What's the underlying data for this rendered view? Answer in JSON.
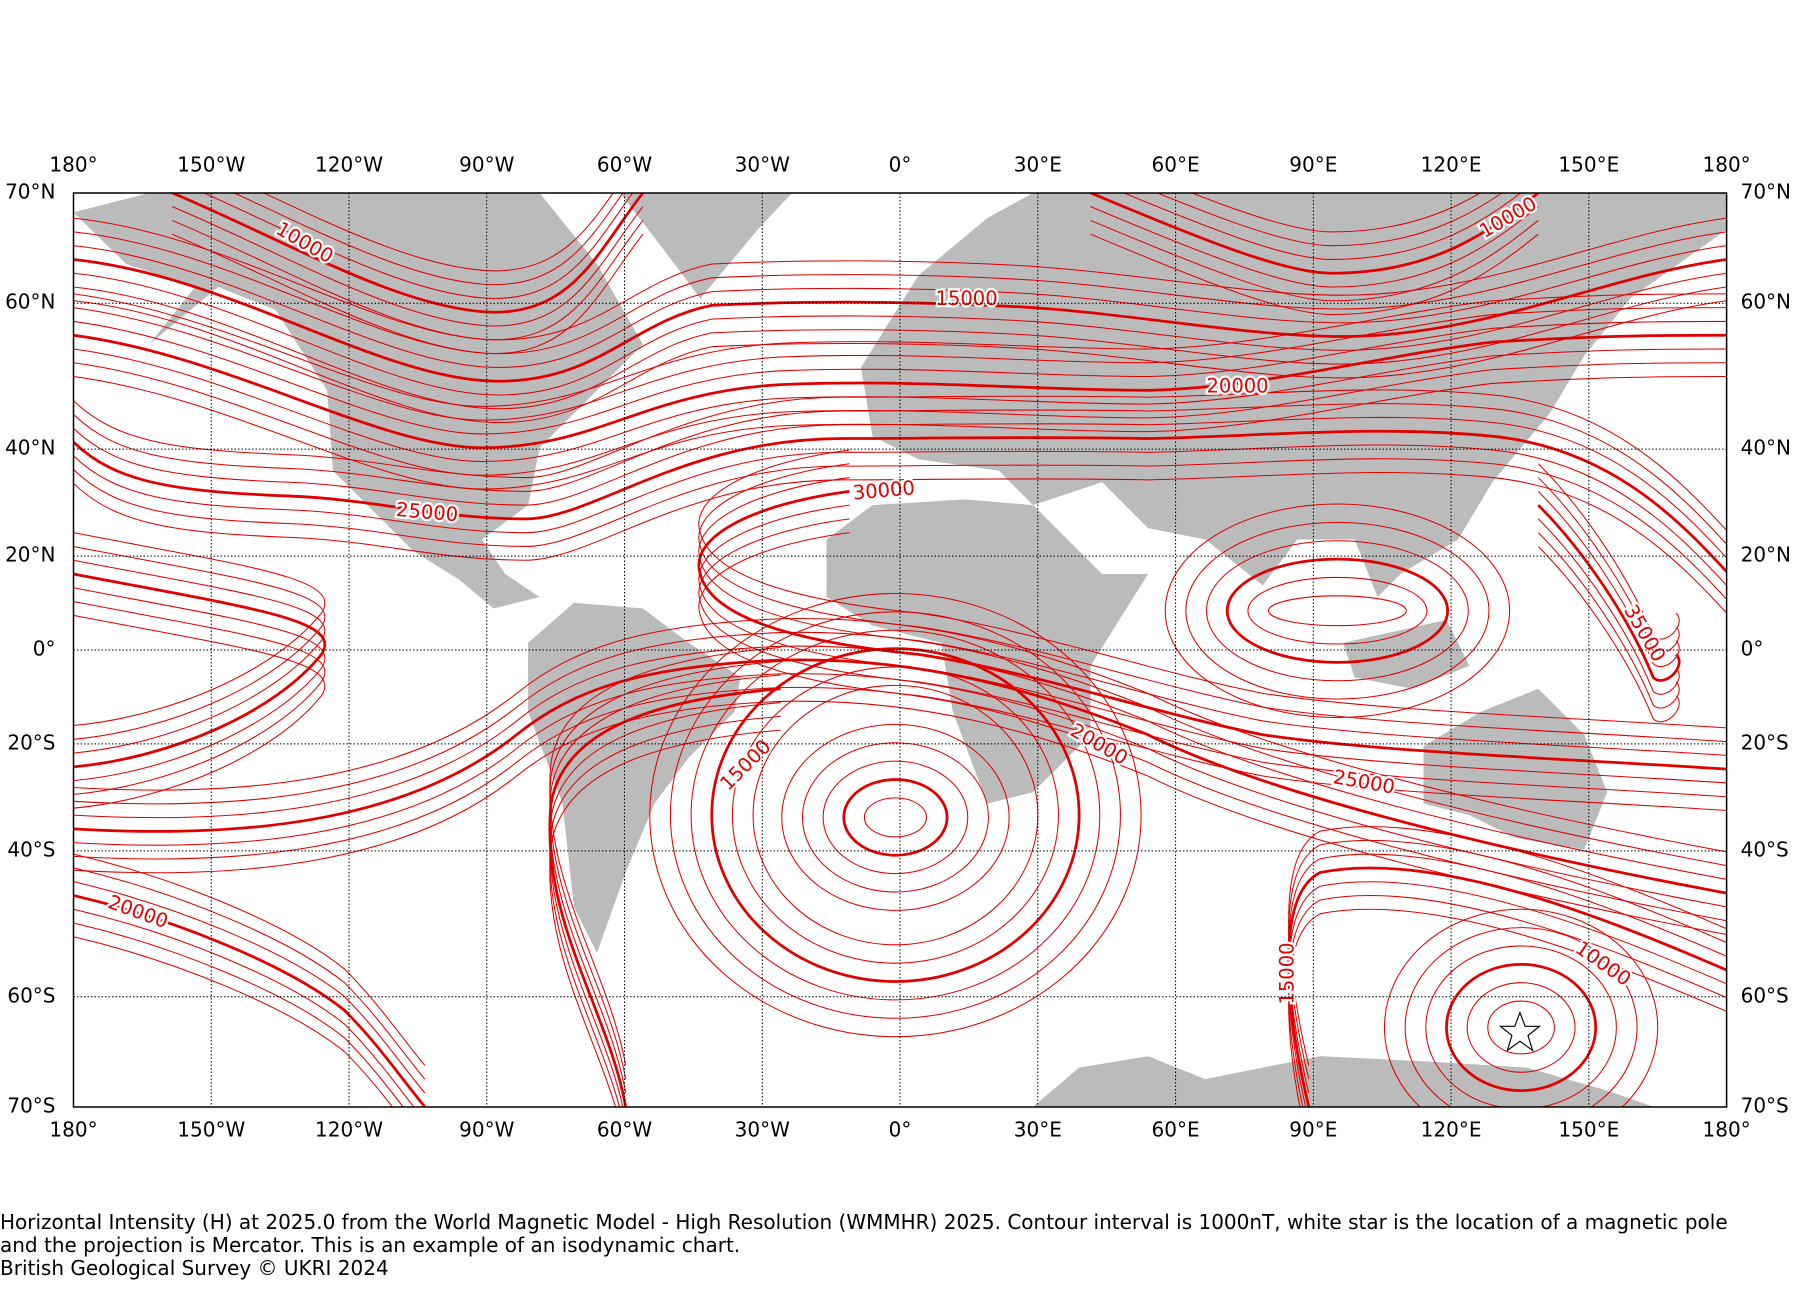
{
  "map": {
    "projection": "mercator",
    "xlim": [
      -180,
      180
    ],
    "ylim": [
      -70,
      70
    ],
    "xticks": [
      {
        "value": -180,
        "label": "180°"
      },
      {
        "value": -150,
        "label": "150°W"
      },
      {
        "value": -120,
        "label": "120°W"
      },
      {
        "value": -90,
        "label": "90°W"
      },
      {
        "value": -60,
        "label": "60°W"
      },
      {
        "value": -30,
        "label": "30°W"
      },
      {
        "value": 0,
        "label": "0°"
      },
      {
        "value": 30,
        "label": "30°E"
      },
      {
        "value": 60,
        "label": "60°E"
      },
      {
        "value": 90,
        "label": "90°E"
      },
      {
        "value": 120,
        "label": "120°E"
      },
      {
        "value": 150,
        "label": "150°E"
      },
      {
        "value": 180,
        "label": "180°"
      }
    ],
    "yticks": [
      {
        "value": 70,
        "label": "70°N"
      },
      {
        "value": 60,
        "label": "60°N"
      },
      {
        "value": 40,
        "label": "40°N"
      },
      {
        "value": 20,
        "label": "20°N"
      },
      {
        "value": 0,
        "label": "0°"
      },
      {
        "value": -20,
        "label": "20°S"
      },
      {
        "value": -40,
        "label": "40°S"
      },
      {
        "value": -60,
        "label": "60°S"
      },
      {
        "value": -70,
        "label": "70°S"
      }
    ],
    "grid": true,
    "contour_color": "#e00000",
    "land_color": "#bbbbbb",
    "contour_labels": [
      "10000",
      "15000",
      "20000",
      "25000",
      "30000",
      "10000",
      "35000",
      "15000",
      "20000",
      "25000",
      "20000",
      "15000",
      "10000"
    ]
  },
  "caption": [
    "Horizontal Intensity (H) at 2025.0 from the World Magnetic Model - High Resolution (WMMHR) 2025. Contour interval is 1000nT, white star is the location of a magnetic pole",
    "and the projection is Mercator. This is an example of an isodynamic chart.",
    "British Geological Survey © UKRI 2024"
  ]
}
